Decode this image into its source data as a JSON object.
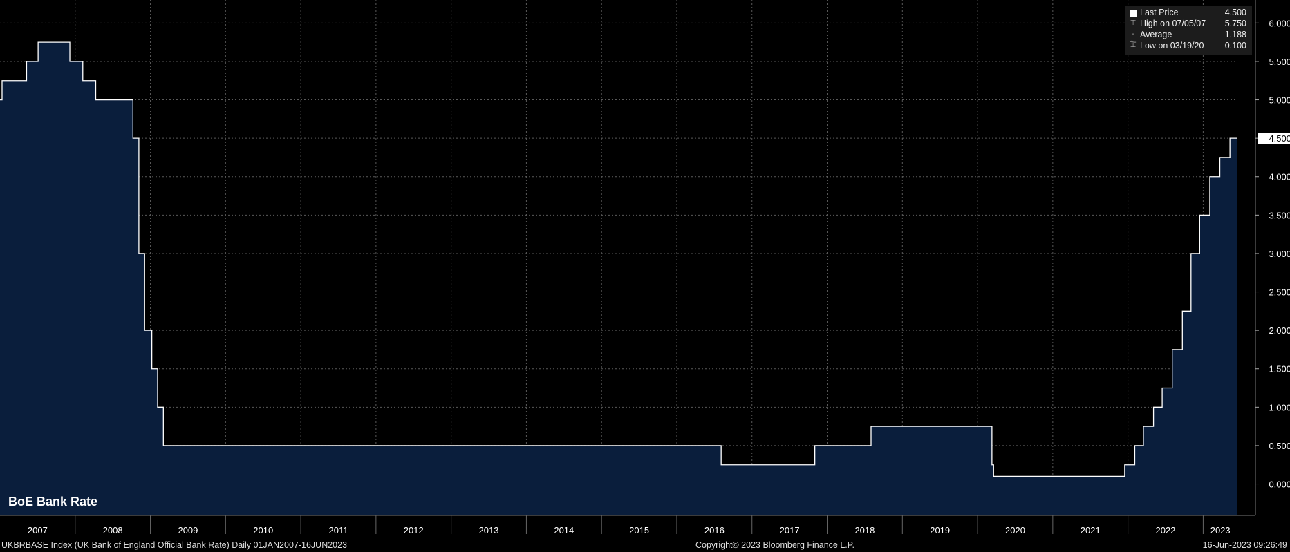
{
  "chart_data": {
    "type": "area",
    "title": "BoE Bank Rate",
    "x_start": "2007-01-01",
    "x_end": "2023-06-16",
    "xlim_years": [
      2007.0,
      2023.456
    ],
    "ylim": [
      -0.4,
      6.3
    ],
    "yticks": [
      0.0,
      0.5,
      1.0,
      1.5,
      2.0,
      2.5,
      3.0,
      3.5,
      4.0,
      4.5,
      5.0,
      5.5,
      6.0
    ],
    "ytick_labels": [
      "0.000",
      "0.500",
      "1.000",
      "1.500",
      "2.000",
      "2.500",
      "3.000",
      "3.500",
      "4.000",
      "4.500",
      "5.000",
      "5.500",
      "6.000"
    ],
    "xtick_labels": [
      "2007",
      "2008",
      "2009",
      "2010",
      "2011",
      "2012",
      "2013",
      "2014",
      "2015",
      "2016",
      "2017",
      "2018",
      "2019",
      "2020",
      "2021",
      "2022",
      "2023"
    ],
    "grid": true,
    "last_value_label": "4.500",
    "series": [
      {
        "values": [
          [
            "2007-01-01",
            5.0
          ],
          [
            "2007-01-11",
            5.25
          ],
          [
            "2007-05-10",
            5.5
          ],
          [
            "2007-07-05",
            5.75
          ],
          [
            "2007-12-06",
            5.5
          ],
          [
            "2008-02-07",
            5.25
          ],
          [
            "2008-04-10",
            5.0
          ],
          [
            "2008-10-08",
            4.5
          ],
          [
            "2008-11-06",
            3.0
          ],
          [
            "2008-12-04",
            2.0
          ],
          [
            "2009-01-08",
            1.5
          ],
          [
            "2009-02-05",
            1.0
          ],
          [
            "2009-03-05",
            0.5
          ],
          [
            "2016-08-04",
            0.25
          ],
          [
            "2017-11-02",
            0.5
          ],
          [
            "2018-08-02",
            0.75
          ],
          [
            "2020-03-11",
            0.25
          ],
          [
            "2020-03-19",
            0.1
          ],
          [
            "2021-12-16",
            0.25
          ],
          [
            "2022-02-03",
            0.5
          ],
          [
            "2022-03-17",
            0.75
          ],
          [
            "2022-05-05",
            1.0
          ],
          [
            "2022-06-16",
            1.25
          ],
          [
            "2022-08-04",
            1.75
          ],
          [
            "2022-09-22",
            2.25
          ],
          [
            "2022-11-03",
            3.0
          ],
          [
            "2022-12-15",
            3.5
          ],
          [
            "2023-02-02",
            4.0
          ],
          [
            "2023-03-23",
            4.25
          ],
          [
            "2023-05-11",
            4.5
          ],
          [
            "2023-06-16",
            4.5
          ]
        ]
      }
    ]
  },
  "legend": {
    "rows": [
      {
        "marker": "square",
        "name": "Last Price",
        "value": "4.500"
      },
      {
        "marker": "high",
        "name": "High on 07/05/07",
        "value": "5.750"
      },
      {
        "marker": "avg",
        "name": "Average",
        "value": "1.188"
      },
      {
        "marker": "low",
        "name": "Low on 03/19/20",
        "value": "0.100"
      }
    ]
  },
  "footer": {
    "left": "UKBRBASE Index (UK Bank of England Official Bank Rate)  Daily 01JAN2007-16JUN2023",
    "center": "Copyright© 2023 Bloomberg Finance L.P.",
    "right": "16-Jun-2023 09:26:49"
  },
  "colors": {
    "background": "#000000",
    "area_fill": "#0a1e3c",
    "line": "#ffffff",
    "grid": "#5a5a5a",
    "axis_text": "#ffffff"
  }
}
